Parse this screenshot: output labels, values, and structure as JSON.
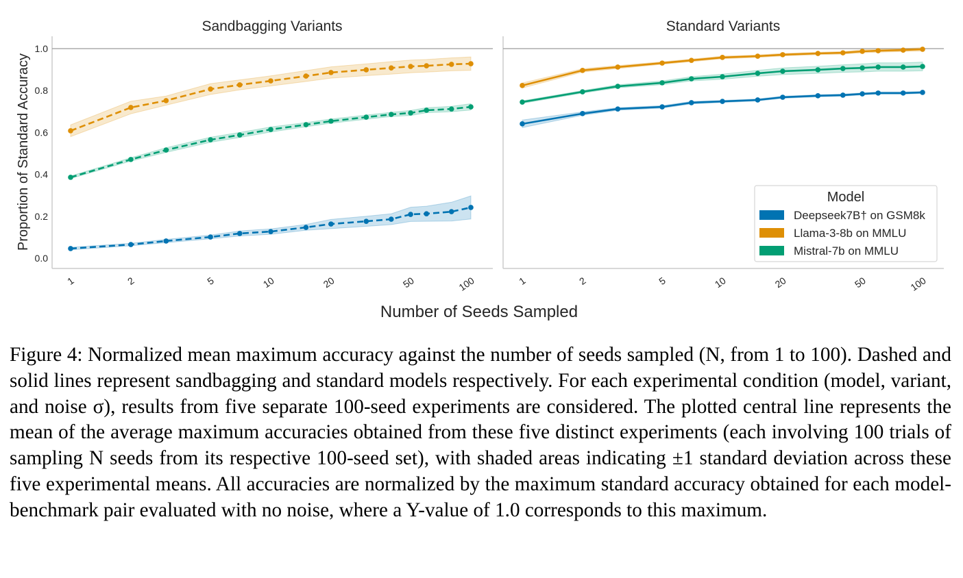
{
  "figure": {
    "ylabel": "Proportion of Standard Accuracy",
    "xlabel": "Number of Seeds Sampled",
    "caption": "Figure 4: Normalized mean maximum accuracy against the number of seeds sampled (N, from 1 to 100). Dashed and solid lines represent sandbagging and standard models respectively. For each experimental condition (model, variant, and noise σ), results from five separate 100-seed experiments are considered. The plotted central line represents the mean of the average maximum accuracies obtained from these five distinct experiments (each involving 100 trials of sampling N seeds from its respective 100-seed set), with shaded areas indicating ±1 standard deviation across these five experimental means. All accuracies are normalized by the maximum standard accuracy obtained for each model-benchmark pair evaluated with no noise, where a Y-value of 1.0 corresponds to this maximum."
  },
  "legend": {
    "title": "Model",
    "placement": "lower-right of right panel",
    "entries": [
      {
        "label": "Deepseek7B† on GSM8k",
        "color": "#0173b2"
      },
      {
        "label": "Llama-3-8b on MMLU",
        "color": "#de8f05"
      },
      {
        "label": "Mistral-7b on MMLU",
        "color": "#029e73"
      }
    ]
  },
  "chart_data": [
    {
      "type": "line",
      "title": "Sandbagging Variants",
      "line_style": "dashed",
      "xlabel": "Number of Seeds Sampled",
      "ylabel": "Proportion of Standard Accuracy",
      "xscale": "log",
      "xlim": [
        1,
        100
      ],
      "ylim": [
        0.0,
        1.0
      ],
      "xticks": [
        "1",
        "2",
        "5",
        "10",
        "20",
        "50",
        "100"
      ],
      "xtick_values": [
        1,
        2,
        5,
        10,
        20,
        50,
        100
      ],
      "yticks": [
        "0.0",
        "0.2",
        "0.4",
        "0.6",
        "0.8",
        "1.0"
      ],
      "ytick_values": [
        0.0,
        0.2,
        0.4,
        0.6,
        0.8,
        1.0
      ],
      "reference_line_y": 1.0,
      "grid": false,
      "x": [
        1,
        2,
        3,
        5,
        7,
        10,
        15,
        20,
        30,
        40,
        50,
        60,
        80,
        100
      ],
      "series": [
        {
          "name": "Deepseek7B† on GSM8k",
          "color": "#0173b2",
          "values": [
            0.046,
            0.065,
            0.082,
            0.101,
            0.118,
            0.127,
            0.147,
            0.163,
            0.176,
            0.186,
            0.209,
            0.212,
            0.222,
            0.242
          ],
          "std": [
            0.006,
            0.006,
            0.008,
            0.009,
            0.012,
            0.013,
            0.014,
            0.022,
            0.024,
            0.026,
            0.034,
            0.036,
            0.045,
            0.055
          ]
        },
        {
          "name": "Llama-3-8b on MMLU",
          "color": "#de8f05",
          "values": [
            0.608,
            0.719,
            0.752,
            0.807,
            0.827,
            0.846,
            0.869,
            0.886,
            0.899,
            0.908,
            0.915,
            0.918,
            0.925,
            0.928
          ],
          "std": [
            0.028,
            0.03,
            0.022,
            0.026,
            0.024,
            0.024,
            0.026,
            0.027,
            0.028,
            0.03,
            0.03,
            0.03,
            0.031,
            0.032
          ]
        },
        {
          "name": "Mistral-7b on MMLU",
          "color": "#029e73",
          "values": [
            0.386,
            0.471,
            0.516,
            0.565,
            0.588,
            0.614,
            0.637,
            0.654,
            0.673,
            0.686,
            0.693,
            0.706,
            0.712,
            0.722
          ],
          "std": [
            0.006,
            0.008,
            0.011,
            0.012,
            0.012,
            0.012,
            0.01,
            0.01,
            0.01,
            0.01,
            0.012,
            0.012,
            0.013,
            0.015
          ]
        }
      ]
    },
    {
      "type": "line",
      "title": "Standard Variants",
      "line_style": "solid",
      "xlabel": "Number of Seeds Sampled",
      "ylabel": "",
      "xscale": "log",
      "xlim": [
        1,
        100
      ],
      "ylim": [
        0.0,
        1.0
      ],
      "xticks": [
        "1",
        "2",
        "5",
        "10",
        "20",
        "50",
        "100"
      ],
      "xtick_values": [
        1,
        2,
        5,
        10,
        20,
        50,
        100
      ],
      "yticks": [],
      "reference_line_y": 1.0,
      "grid": false,
      "x": [
        1,
        2,
        3,
        5,
        7,
        10,
        15,
        20,
        30,
        40,
        50,
        60,
        80,
        100
      ],
      "series": [
        {
          "name": "Deepseek7B† on GSM8k",
          "color": "#0173b2",
          "values": [
            0.641,
            0.69,
            0.712,
            0.722,
            0.742,
            0.748,
            0.755,
            0.768,
            0.775,
            0.778,
            0.784,
            0.788,
            0.788,
            0.791
          ],
          "std": [
            0.018,
            0.008,
            0.006,
            0.006,
            0.006,
            0.005,
            0.005,
            0.005,
            0.005,
            0.005,
            0.005,
            0.005,
            0.005,
            0.005
          ]
        },
        {
          "name": "Llama-3-8b on MMLU",
          "color": "#de8f05",
          "values": [
            0.824,
            0.896,
            0.912,
            0.931,
            0.944,
            0.958,
            0.964,
            0.971,
            0.977,
            0.98,
            0.987,
            0.99,
            0.993,
            0.997
          ],
          "std": [
            0.012,
            0.008,
            0.007,
            0.006,
            0.006,
            0.006,
            0.006,
            0.006,
            0.006,
            0.006,
            0.007,
            0.007,
            0.007,
            0.008
          ]
        },
        {
          "name": "Mistral-7b on MMLU",
          "color": "#029e73",
          "values": [
            0.745,
            0.794,
            0.82,
            0.837,
            0.856,
            0.866,
            0.882,
            0.892,
            0.899,
            0.905,
            0.908,
            0.912,
            0.912,
            0.915
          ],
          "std": [
            0.006,
            0.006,
            0.007,
            0.009,
            0.01,
            0.012,
            0.014,
            0.016,
            0.017,
            0.018,
            0.019,
            0.02,
            0.02,
            0.021
          ]
        }
      ]
    }
  ]
}
